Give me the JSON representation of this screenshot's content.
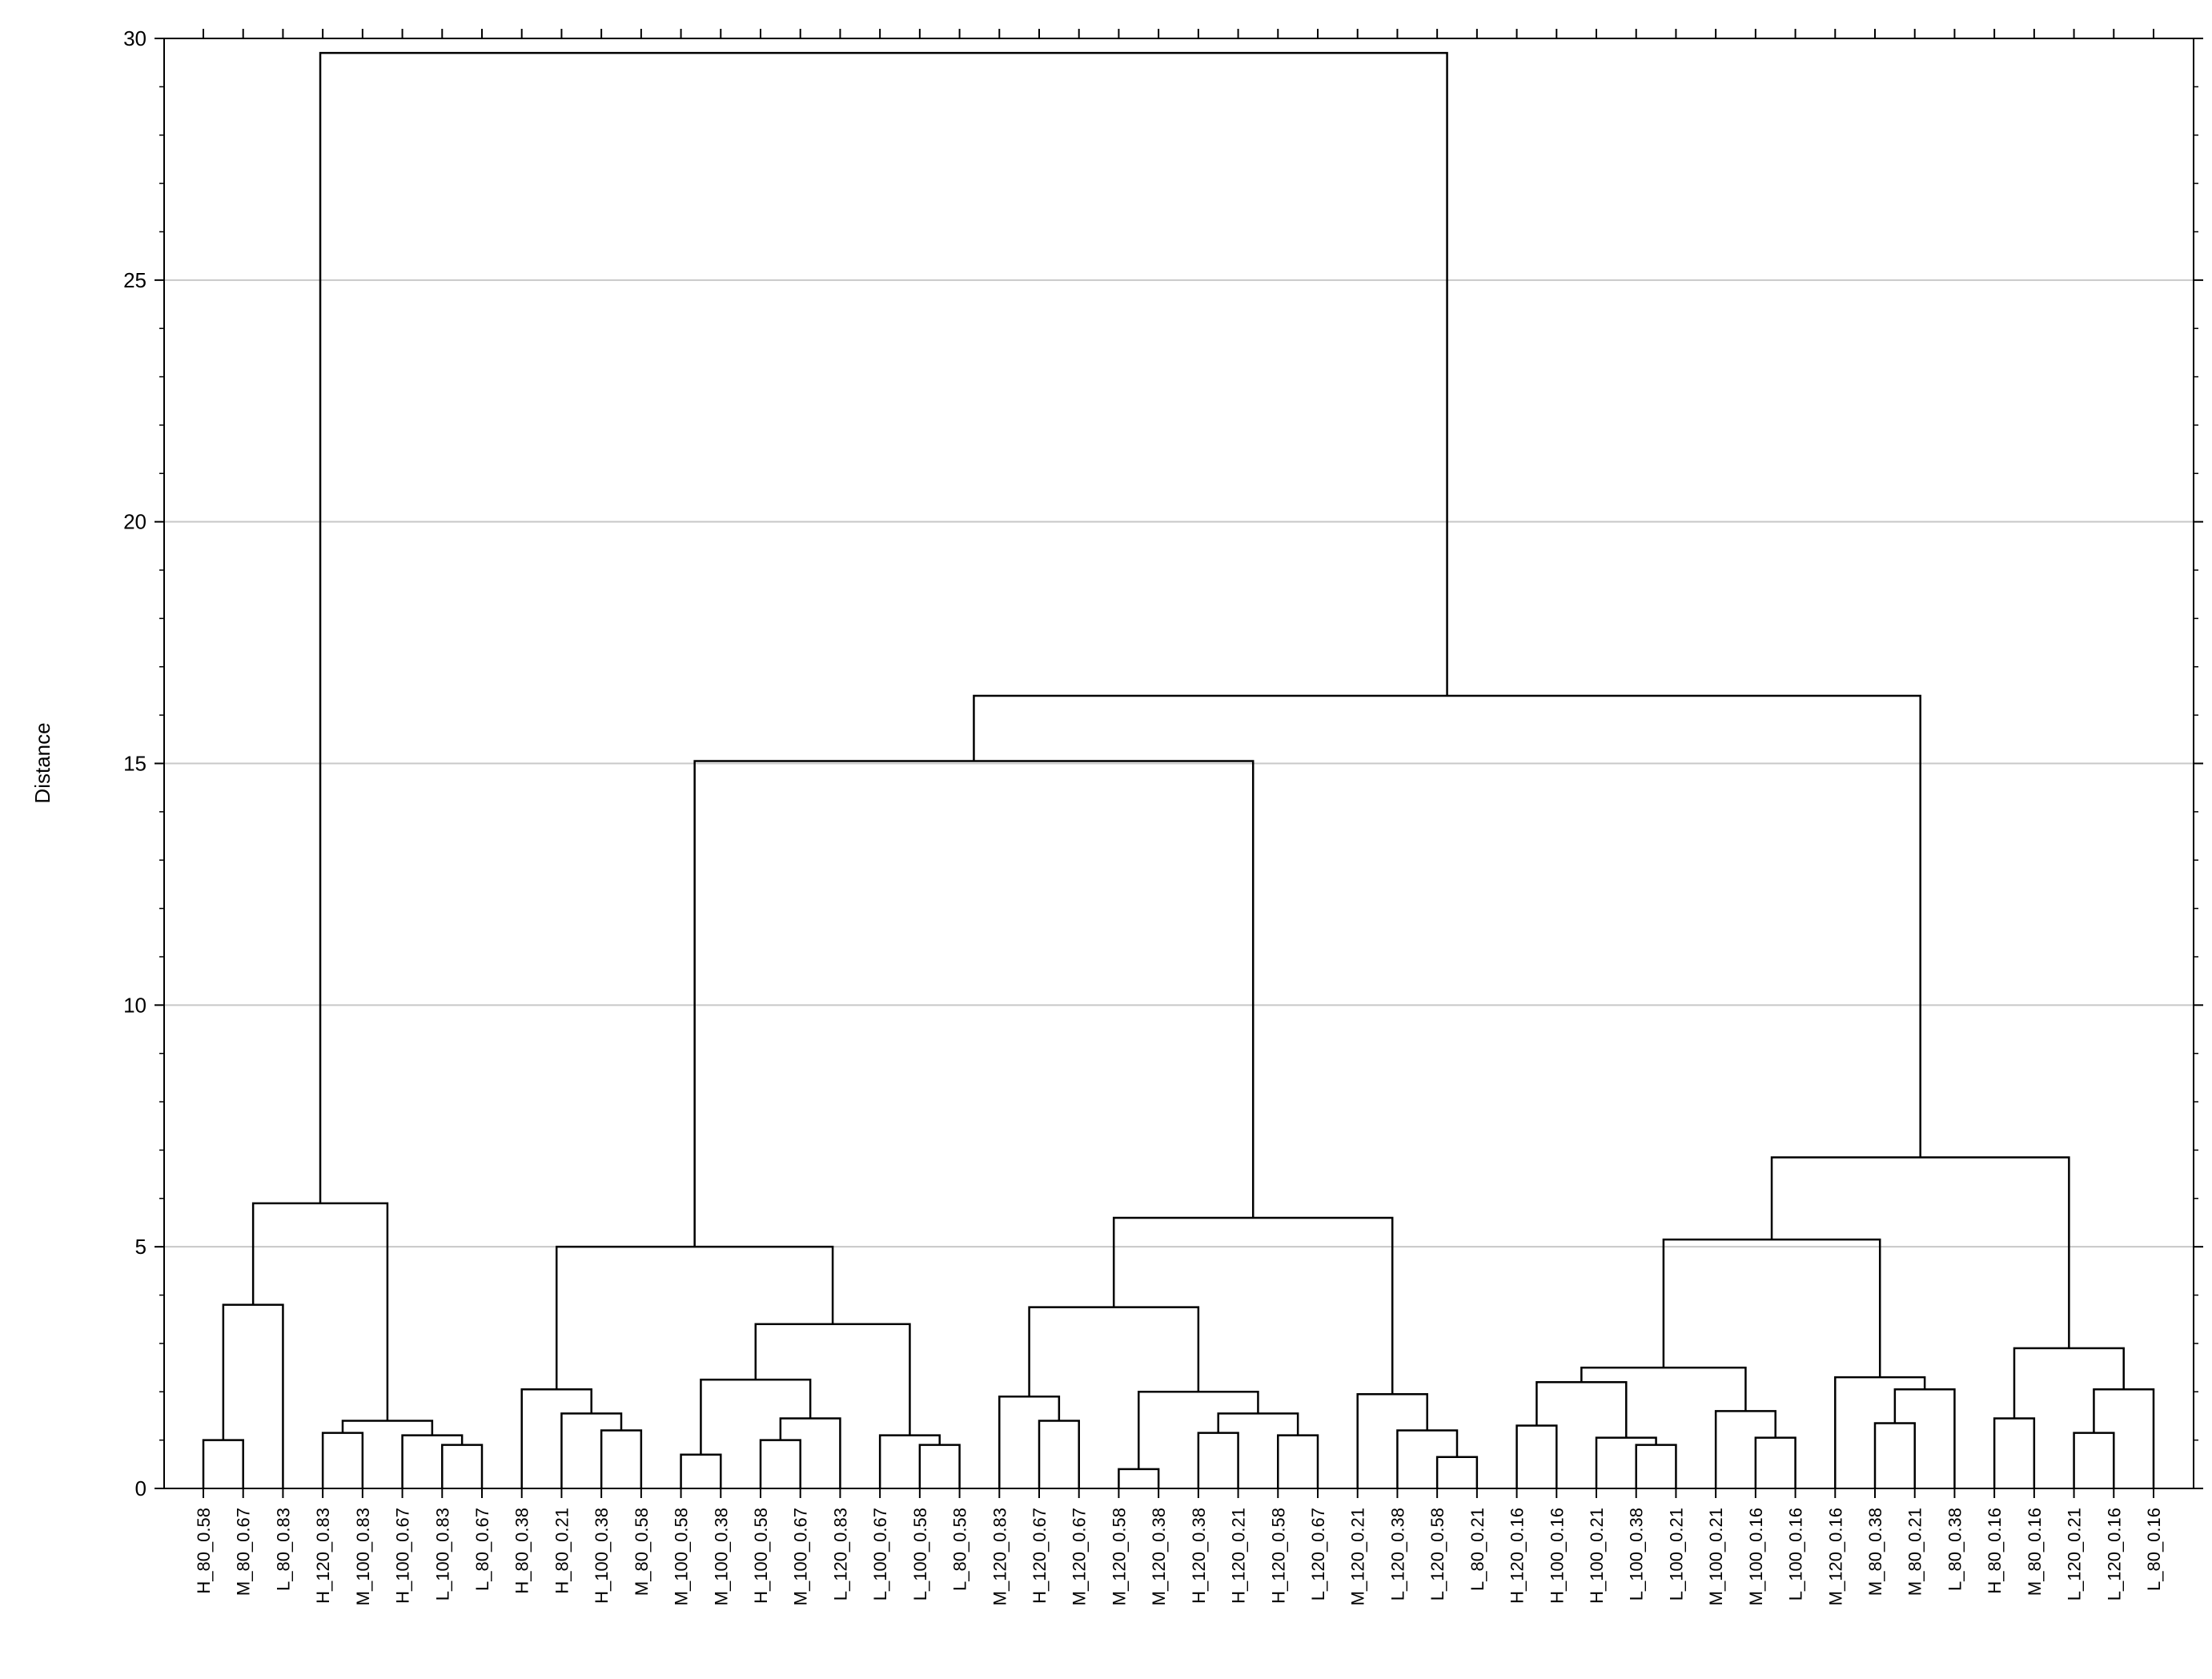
{
  "chart_data": {
    "type": "dendrogram",
    "ylabel": "Distance",
    "ylim": [
      0,
      30
    ],
    "yticks": [
      0,
      5,
      10,
      15,
      20,
      25,
      30
    ],
    "grid": true,
    "color": "#000000",
    "leaves": [
      "H_80_0.58",
      "M_80_0.67",
      "L_80_0.83",
      "H_120_0.83",
      "M_100_0.83",
      "H_100_0.67",
      "L_100_0.83",
      "L_80_0.67",
      "H_80_0.38",
      "H_80_0.21",
      "H_100_0.38",
      "M_80_0.58",
      "M_100_0.58",
      "M_100_0.38",
      "H_100_0.58",
      "M_100_0.67",
      "L_120_0.83",
      "L_100_0.67",
      "L_100_0.58",
      "L_80_0.58",
      "M_120_0.83",
      "H_120_0.67",
      "M_120_0.67",
      "M_120_0.58",
      "M_120_0.38",
      "H_120_0.38",
      "H_120_0.21",
      "H_120_0.58",
      "L_120_0.67",
      "M_120_0.21",
      "L_120_0.38",
      "L_120_0.58",
      "L_80_0.21",
      "H_120_0.16",
      "H_100_0.16",
      "H_100_0.21",
      "L_100_0.38",
      "L_100_0.21",
      "M_100_0.21",
      "M_100_0.16",
      "L_100_0.16",
      "M_120_0.16",
      "M_80_0.38",
      "M_80_0.21",
      "L_80_0.38",
      "H_80_0.16",
      "M_80_0.16",
      "L_120_0.21",
      "L_120_0.16",
      "L_80_0.16"
    ],
    "merges": [
      {
        "children": [
          0,
          1
        ],
        "height": 1.0
      },
      {
        "children": [
          50,
          2
        ],
        "height": 3.8
      },
      {
        "children": [
          6,
          7
        ],
        "height": 0.9
      },
      {
        "children": [
          5,
          52
        ],
        "height": 1.1
      },
      {
        "children": [
          3,
          4
        ],
        "height": 1.15
      },
      {
        "children": [
          54,
          53
        ],
        "height": 1.4
      },
      {
        "children": [
          51,
          55
        ],
        "height": 5.9
      },
      {
        "children": [
          10,
          11
        ],
        "height": 1.2
      },
      {
        "children": [
          9,
          57
        ],
        "height": 1.55
      },
      {
        "children": [
          8,
          58
        ],
        "height": 2.05
      },
      {
        "children": [
          12,
          13
        ],
        "height": 0.7
      },
      {
        "children": [
          14,
          15
        ],
        "height": 1.0
      },
      {
        "children": [
          61,
          16
        ],
        "height": 1.45
      },
      {
        "children": [
          60,
          62
        ],
        "height": 2.25
      },
      {
        "children": [
          18,
          19
        ],
        "height": 0.9
      },
      {
        "children": [
          17,
          64
        ],
        "height": 1.1
      },
      {
        "children": [
          63,
          65
        ],
        "height": 3.4
      },
      {
        "children": [
          59,
          66
        ],
        "height": 5.0
      },
      {
        "children": [
          21,
          22
        ],
        "height": 1.4
      },
      {
        "children": [
          20,
          68
        ],
        "height": 1.9
      },
      {
        "children": [
          23,
          24
        ],
        "height": 0.4
      },
      {
        "children": [
          25,
          26
        ],
        "height": 1.15
      },
      {
        "children": [
          27,
          28
        ],
        "height": 1.1
      },
      {
        "children": [
          71,
          72
        ],
        "height": 1.55
      },
      {
        "children": [
          70,
          73
        ],
        "height": 2.0
      },
      {
        "children": [
          69,
          74
        ],
        "height": 3.75
      },
      {
        "children": [
          31,
          32
        ],
        "height": 0.65
      },
      {
        "children": [
          30,
          76
        ],
        "height": 1.2
      },
      {
        "children": [
          29,
          77
        ],
        "height": 1.95
      },
      {
        "children": [
          75,
          78
        ],
        "height": 5.6
      },
      {
        "children": [
          67,
          79
        ],
        "height": 15.05
      },
      {
        "children": [
          36,
          37
        ],
        "height": 0.9
      },
      {
        "children": [
          35,
          81
        ],
        "height": 1.05
      },
      {
        "children": [
          33,
          34
        ],
        "height": 1.3
      },
      {
        "children": [
          83,
          82
        ],
        "height": 2.2
      },
      {
        "children": [
          39,
          40
        ],
        "height": 1.05
      },
      {
        "children": [
          38,
          85
        ],
        "height": 1.6
      },
      {
        "children": [
          84,
          86
        ],
        "height": 2.5
      },
      {
        "children": [
          42,
          43
        ],
        "height": 1.35
      },
      {
        "children": [
          88,
          44
        ],
        "height": 2.05
      },
      {
        "children": [
          41,
          89
        ],
        "height": 2.3
      },
      {
        "children": [
          87,
          90
        ],
        "height": 5.15
      },
      {
        "children": [
          45,
          46
        ],
        "height": 1.45
      },
      {
        "children": [
          47,
          48
        ],
        "height": 1.15
      },
      {
        "children": [
          93,
          49
        ],
        "height": 2.05
      },
      {
        "children": [
          92,
          94
        ],
        "height": 2.9
      },
      {
        "children": [
          91,
          95
        ],
        "height": 6.85
      },
      {
        "children": [
          80,
          96
        ],
        "height": 16.4
      },
      {
        "children": [
          56,
          97
        ],
        "height": 29.7
      }
    ]
  }
}
